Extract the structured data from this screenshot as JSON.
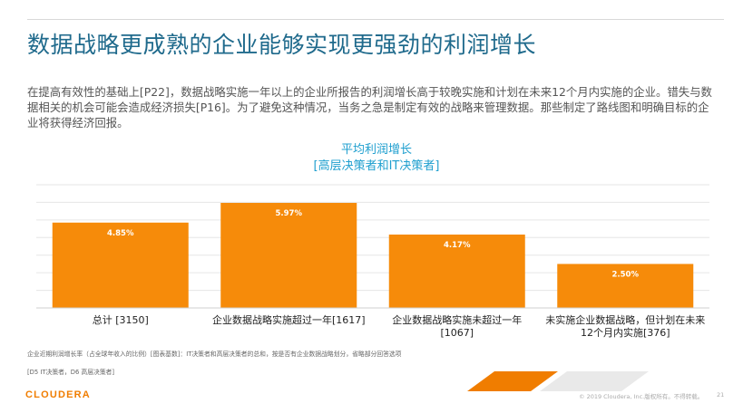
{
  "slide": {
    "title": "数据战略更成熟的企业能够实现更强劲的利润增长",
    "intro": "在提高有效性的基础上[P22]，数据战略实施一年以上的企业所报告的利润增长高于较晚实施和计划在未来12个月内实施的企业。错失与数据相关的机会可能会造成经济损失[P16]。为了避免这种情况，当务之急是制定有效的战略来管理数据。那些制定了路线图和明确目标的企业将获得经济回报。"
  },
  "chart_data": {
    "type": "bar",
    "title": "平均利润增长",
    "subtitle": "[高层决策者和IT决策者]",
    "categories": [
      [
        "总计 [3150]"
      ],
      [
        "企业数据战略实施超过一年[1617]"
      ],
      [
        "企业数据战略实施未超过一年",
        "[1067]"
      ],
      [
        "未实施企业数据战略，但计划在未来",
        "12个月内实施[376]"
      ]
    ],
    "values": [
      4.85,
      5.97,
      4.17,
      2.5
    ],
    "value_labels": [
      "4.85%",
      "5.97%",
      "4.17%",
      "2.50%"
    ],
    "ylim": [
      0,
      7
    ],
    "grid": true,
    "bar_color": "#f68b0a",
    "label_color": "#ffffff"
  },
  "footnotes": {
    "note1": "企业近期利润增长率（占全球年收入的比例）[图表基数]：IT决策者和高层决策者的总和，按是否有企业数据战略划分，省略部分回答选项",
    "note2": "[D5 IT决策者，D6 高层决策者]"
  },
  "brand": {
    "logo": "CLOUDERA",
    "copyright": "© 2019 Cloudera, Inc.版权所有。不得转载。",
    "page": "21",
    "accent": "#f07d00"
  }
}
